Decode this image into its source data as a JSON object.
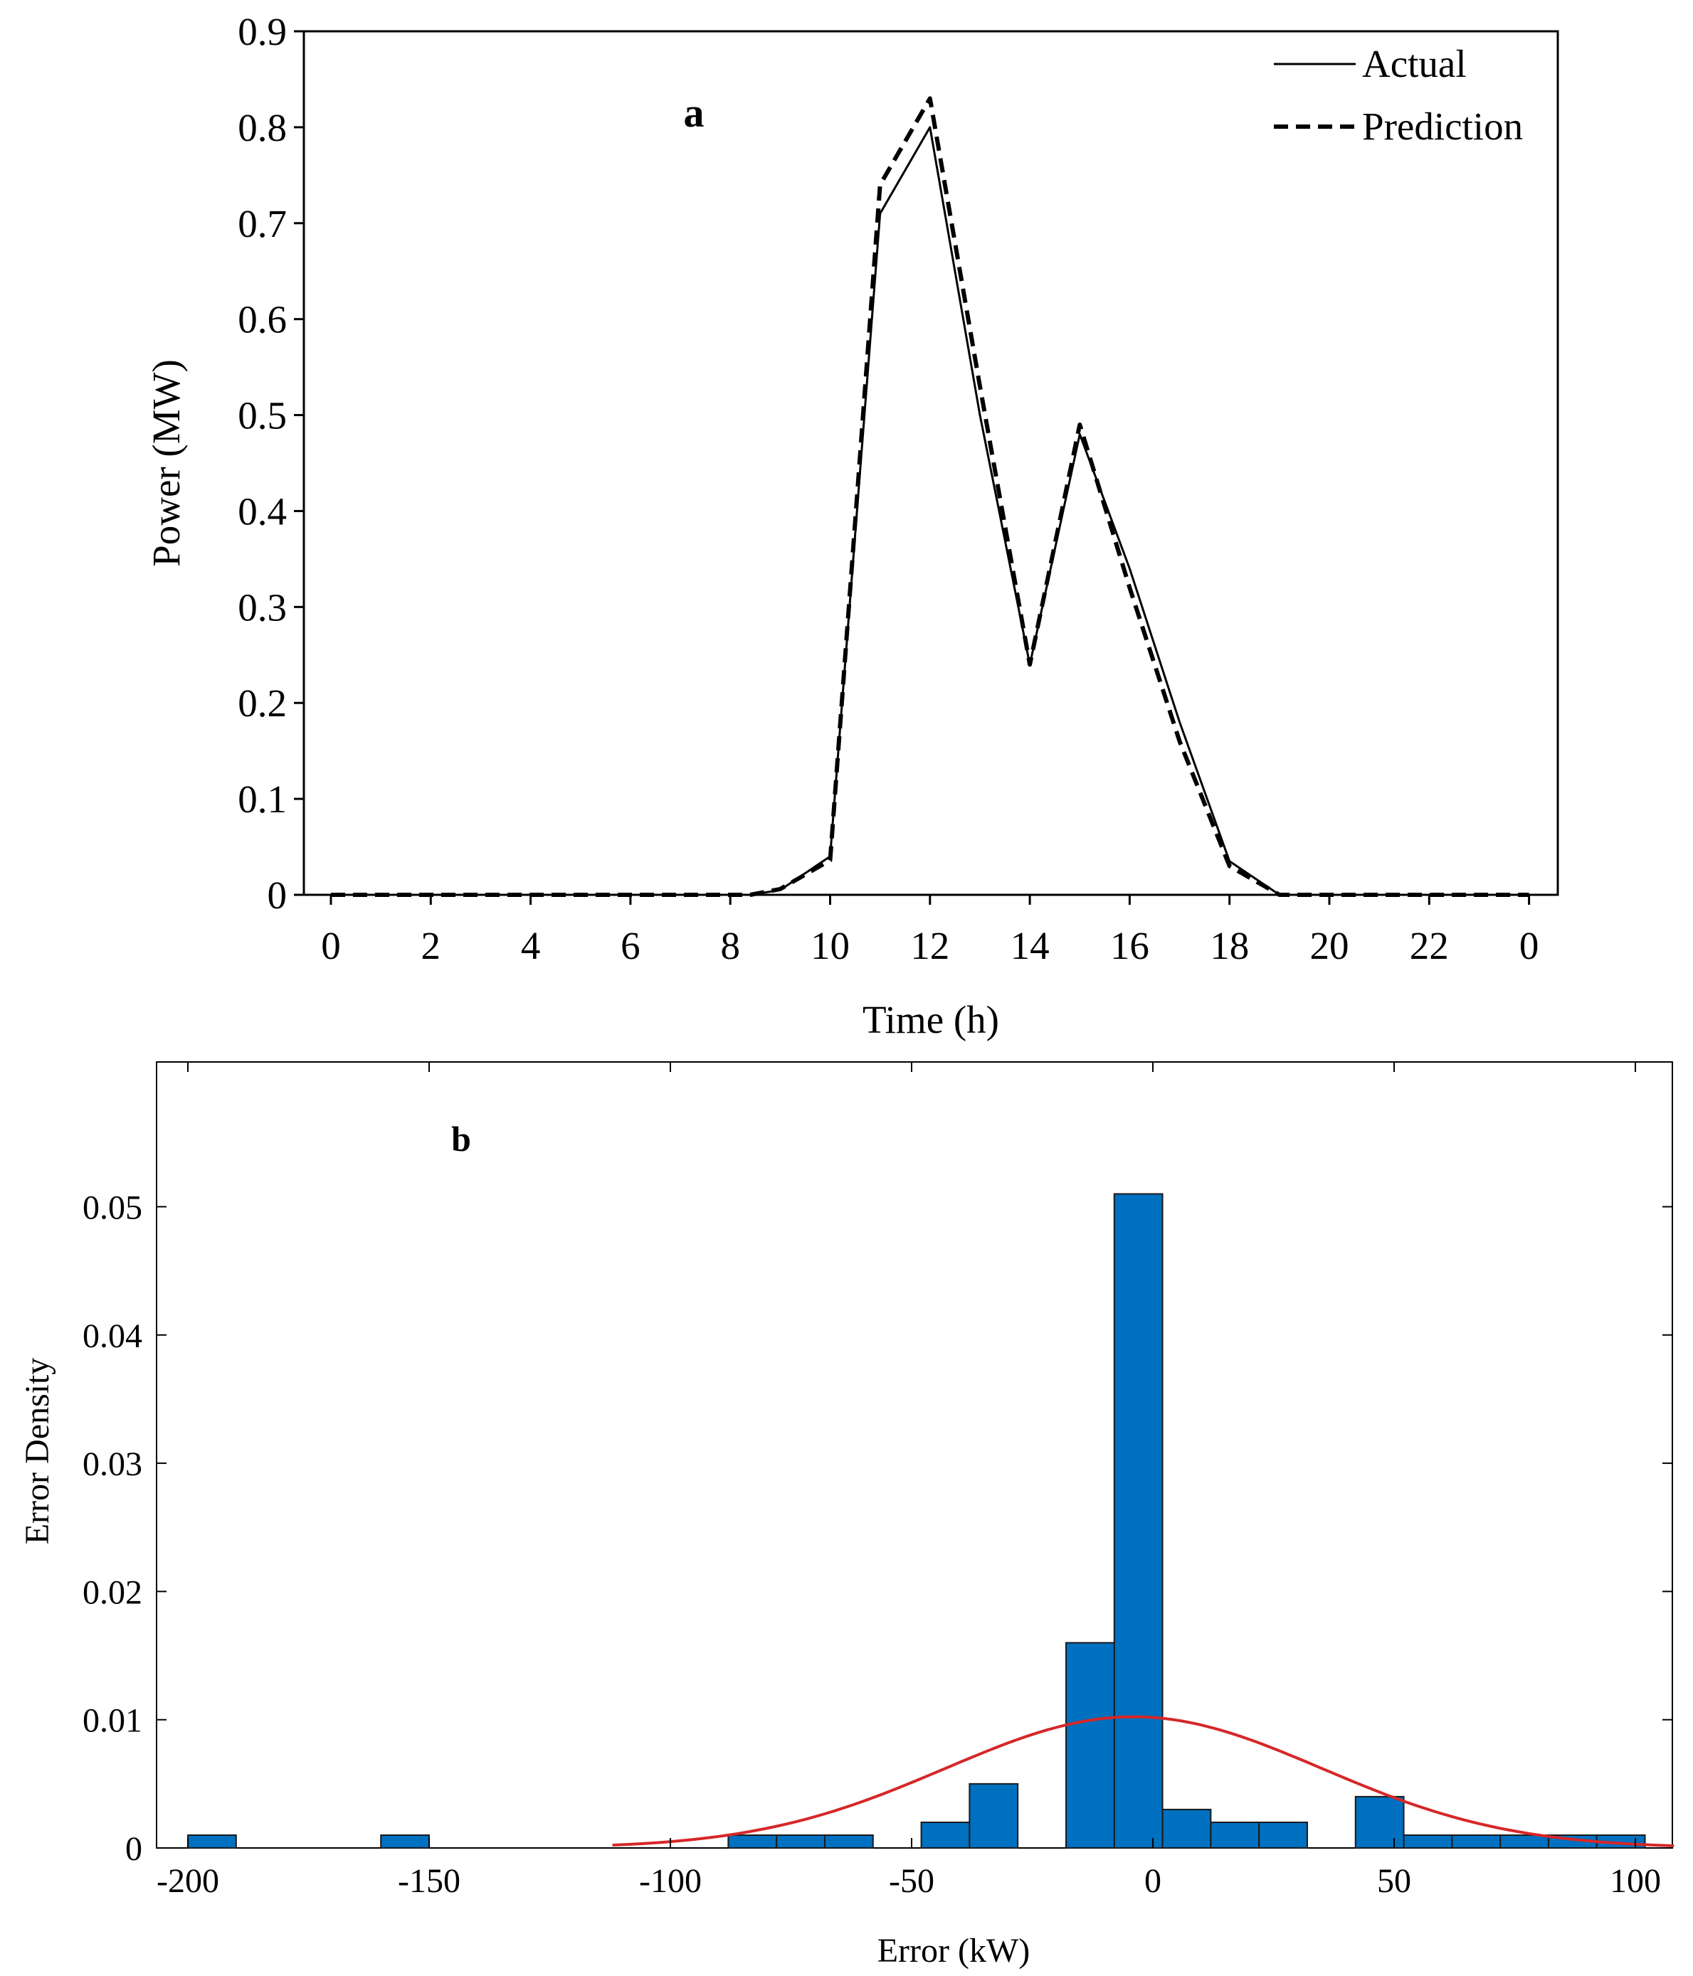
{
  "chart_data": [
    {
      "type": "line",
      "panel_label": "a",
      "title": "",
      "xlabel": "Time (h)",
      "ylabel": "Power (MW)",
      "x_ticks": [
        0,
        1,
        2,
        3,
        4,
        5,
        6,
        7,
        8,
        9,
        10,
        11,
        12
      ],
      "x_tick_labels": [
        "0",
        "2",
        "4",
        "6",
        "8",
        "10",
        "12",
        "14",
        "16",
        "18",
        "20",
        "22",
        "0"
      ],
      "xlim": [
        -0.55,
        12.25
      ],
      "ylim": [
        0,
        0.9
      ],
      "y_ticks": [
        0,
        0.1,
        0.2,
        0.3,
        0.4,
        0.5,
        0.6,
        0.7,
        0.8,
        0.9
      ],
      "y_tick_labels": [
        "0",
        "0.1",
        "0.2",
        "0.3",
        "0.4",
        "0.5",
        "0.6",
        "0.7",
        "0.8",
        "0.9"
      ],
      "legend_position": "top-right",
      "series": [
        {
          "name": "Actual",
          "style": "solid",
          "x": [
            0,
            1.5,
            3,
            4,
            4.2,
            4.5,
            5,
            5.5,
            6,
            6.5,
            7,
            7.5,
            8,
            8.5,
            9,
            9.5,
            10,
            11,
            12
          ],
          "y": [
            0,
            0,
            0,
            0,
            0,
            0.005,
            0.04,
            0.71,
            0.8,
            0.5,
            0.24,
            0.48,
            0.34,
            0.18,
            0.035,
            0,
            0,
            0,
            0
          ]
        },
        {
          "name": "Prediction",
          "style": "dashed",
          "x": [
            0,
            1.5,
            3,
            4,
            4.2,
            4.5,
            5,
            5.5,
            6,
            6.5,
            7,
            7.5,
            8,
            8.5,
            9,
            9.5,
            10,
            11,
            12
          ],
          "y": [
            0,
            0,
            0,
            0,
            0,
            0.006,
            0.036,
            0.74,
            0.83,
            0.53,
            0.24,
            0.49,
            0.32,
            0.16,
            0.03,
            0,
            0,
            0,
            0
          ]
        }
      ]
    },
    {
      "type": "bar",
      "panel_label": "b",
      "title": "",
      "xlabel": "Error (kW)",
      "ylabel": "Error Density",
      "xlim": [
        -205,
        108
      ],
      "ylim": [
        0,
        0.06
      ],
      "x_ticks": [
        -200,
        -150,
        -100,
        -50,
        0,
        50,
        100
      ],
      "x_tick_labels": [
        "-200",
        "-150",
        "-100",
        "-50",
        "0",
        "50",
        "100"
      ],
      "y_ticks": [
        0,
        0.01,
        0.02,
        0.03,
        0.04,
        0.05
      ],
      "y_tick_labels": [
        "0",
        "0.01",
        "0.02",
        "0.03",
        "0.04",
        "0.05"
      ],
      "bin_width": 10,
      "bins": [
        {
          "x0": -200,
          "x1": -190,
          "density": 0.001
        },
        {
          "x0": -160,
          "x1": -150,
          "density": 0.001
        },
        {
          "x0": -88,
          "x1": -78,
          "density": 0.001
        },
        {
          "x0": -78,
          "x1": -68,
          "density": 0.001
        },
        {
          "x0": -68,
          "x1": -58,
          "density": 0.001
        },
        {
          "x0": -48,
          "x1": -38,
          "density": 0.002
        },
        {
          "x0": -38,
          "x1": -28,
          "density": 0.005
        },
        {
          "x0": -18,
          "x1": -8,
          "density": 0.016
        },
        {
          "x0": -8,
          "x1": 2,
          "density": 0.051
        },
        {
          "x0": 2,
          "x1": 12,
          "density": 0.003
        },
        {
          "x0": 12,
          "x1": 22,
          "density": 0.002
        },
        {
          "x0": 22,
          "x1": 32,
          "density": 0.002
        },
        {
          "x0": 42,
          "x1": 52,
          "density": 0.004
        },
        {
          "x0": 52,
          "x1": 62,
          "density": 0.001
        },
        {
          "x0": 62,
          "x1": 72,
          "density": 0.001
        },
        {
          "x0": 72,
          "x1": 82,
          "density": 0.001
        },
        {
          "x0": 82,
          "x1": 92,
          "density": 0.001
        },
        {
          "x0": 92,
          "x1": 102,
          "density": 0.001
        }
      ],
      "fit_curve": {
        "type": "normal",
        "mean": -4,
        "std": 39,
        "x_range": [
          -112,
          108
        ]
      }
    }
  ],
  "colors": {
    "bar_fill": "#0070C0",
    "bar_edge": "#1a1a1a",
    "fit_curve": "#D62728",
    "axis": "#000000"
  }
}
